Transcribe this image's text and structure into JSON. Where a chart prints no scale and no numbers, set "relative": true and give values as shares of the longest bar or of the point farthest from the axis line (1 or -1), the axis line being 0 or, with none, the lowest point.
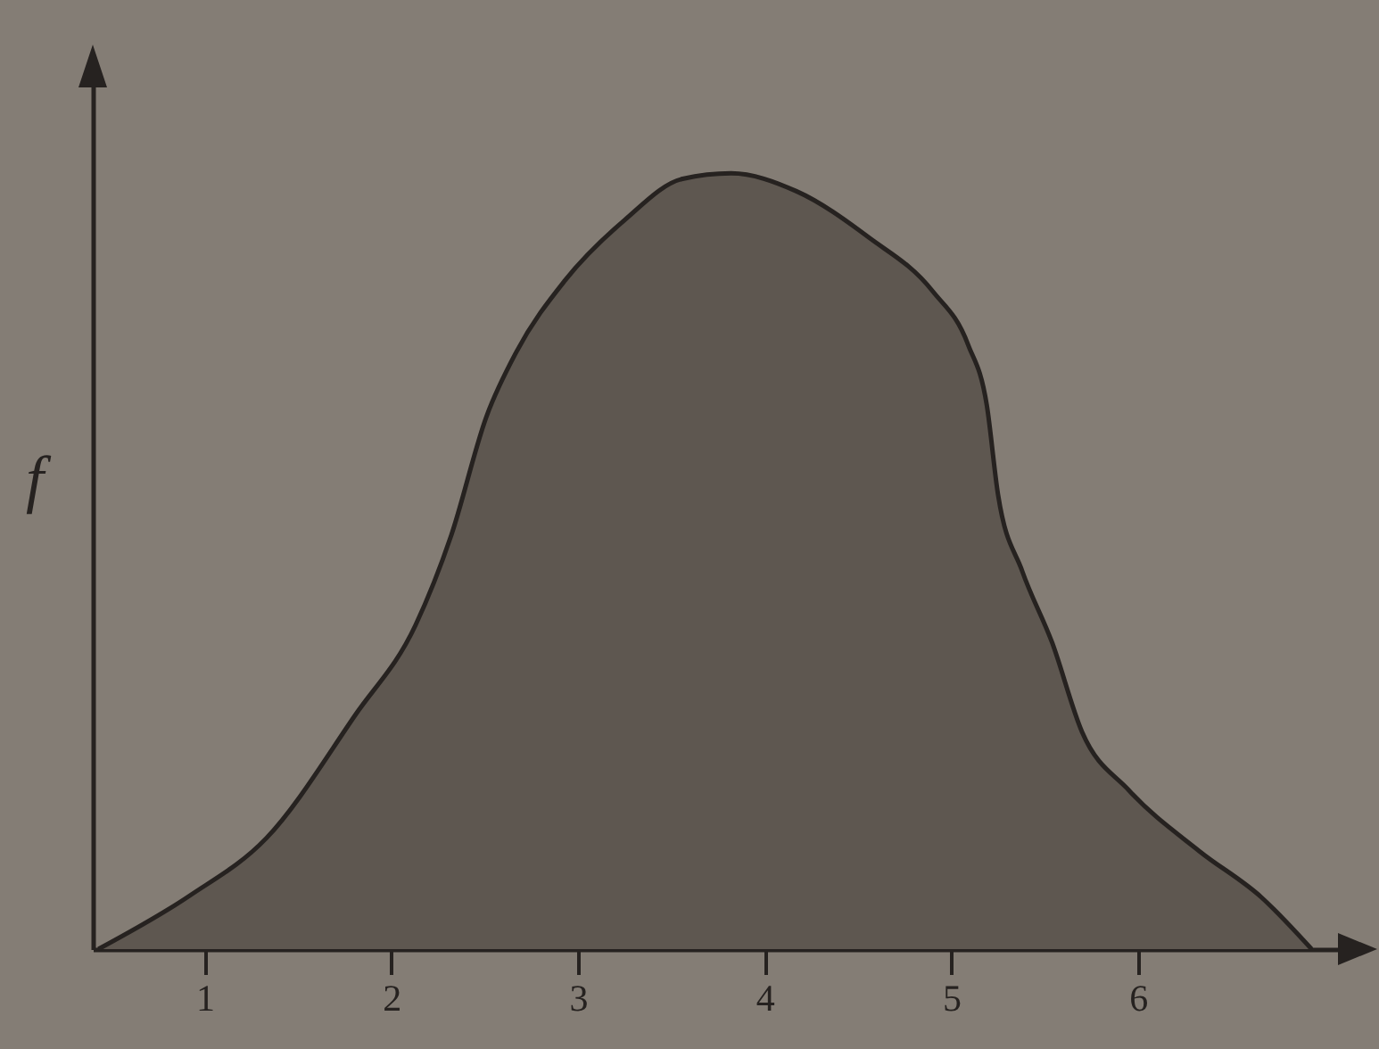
{
  "chart_data": {
    "type": "area",
    "ylabel": "f",
    "relative": true,
    "tick_labels": "x",
    "color": "#5e5750",
    "x": [
      0.43,
      0.92,
      1.33,
      1.81,
      2.13,
      2.32,
      2.51,
      2.67,
      2.93,
      3.25,
      3.56,
      3.82,
      4.17,
      4.56,
      4.9,
      5.09,
      5.19,
      5.25,
      5.38,
      5.54,
      5.7,
      5.95,
      6.33,
      6.66,
      6.93
    ],
    "values": [
      0,
      0.069,
      0.143,
      0.303,
      0.418,
      0.533,
      0.687,
      0.77,
      0.862,
      0.94,
      0.993,
      1,
      0.977,
      0.917,
      0.848,
      0.779,
      0.701,
      0.586,
      0.487,
      0.395,
      0.28,
      0.205,
      0.126,
      0.067,
      0
    ],
    "xlim": [
      0.4,
      7.1
    ],
    "xticks": [
      1,
      2,
      3,
      4,
      5,
      6
    ]
  }
}
